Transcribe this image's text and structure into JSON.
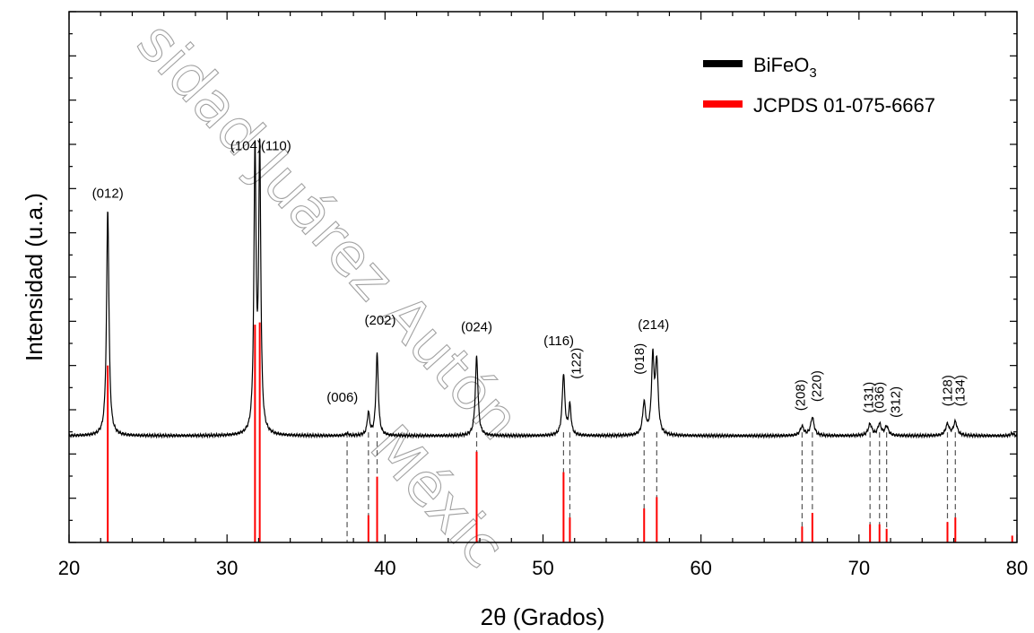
{
  "chart_data": {
    "type": "line",
    "xlabel_prefix": "2",
    "xlabel_symbol": "θ",
    "xlabel_suffix": " (Grados)",
    "ylabel": "Intensidad (u.a.)",
    "xlim": [
      20,
      80
    ],
    "xticks": [
      "20",
      "30",
      "40",
      "50",
      "60",
      "70",
      "80"
    ],
    "legend": {
      "position": "top-right",
      "entries": [
        {
          "label_main": "BiFeO",
          "label_sub": "3",
          "color": "#000000"
        },
        {
          "label_main": "JCPDS 01-075-6667",
          "label_sub": "",
          "color": "#ff0000"
        }
      ]
    },
    "series": [
      {
        "name": "BiFeO3",
        "color": "#000000",
        "baseline": 0.47,
        "peaks": [
          {
            "x": 22.45,
            "h": 1.0,
            "w": 0.09
          },
          {
            "x": 31.77,
            "h": 1.24,
            "w": 0.08
          },
          {
            "x": 32.07,
            "h": 1.24,
            "w": 0.08
          },
          {
            "x": 37.6,
            "h": 0.01,
            "w": 0.1
          },
          {
            "x": 38.95,
            "h": 0.1,
            "w": 0.09
          },
          {
            "x": 39.5,
            "h": 0.36,
            "w": 0.09
          },
          {
            "x": 45.8,
            "h": 0.35,
            "w": 0.1
          },
          {
            "x": 51.3,
            "h": 0.27,
            "w": 0.1
          },
          {
            "x": 51.7,
            "h": 0.13,
            "w": 0.09
          },
          {
            "x": 56.4,
            "h": 0.14,
            "w": 0.11
          },
          {
            "x": 56.95,
            "h": 0.33,
            "w": 0.1
          },
          {
            "x": 57.2,
            "h": 0.31,
            "w": 0.1
          },
          {
            "x": 66.4,
            "h": 0.04,
            "w": 0.14
          },
          {
            "x": 67.05,
            "h": 0.08,
            "w": 0.13
          },
          {
            "x": 70.7,
            "h": 0.05,
            "w": 0.14
          },
          {
            "x": 71.3,
            "h": 0.05,
            "w": 0.13
          },
          {
            "x": 71.75,
            "h": 0.04,
            "w": 0.13
          },
          {
            "x": 75.6,
            "h": 0.05,
            "w": 0.14
          },
          {
            "x": 76.1,
            "h": 0.06,
            "w": 0.14
          },
          {
            "x": 79.7,
            "h": 0.01,
            "w": 0.12
          }
        ]
      },
      {
        "name": "JCPDS 01-075-6667",
        "color": "#ff0000",
        "sticks": [
          {
            "x": 22.45,
            "h": 0.78
          },
          {
            "x": 31.77,
            "h": 0.96
          },
          {
            "x": 32.07,
            "h": 0.97
          },
          {
            "x": 38.95,
            "h": 0.12
          },
          {
            "x": 39.5,
            "h": 0.29
          },
          {
            "x": 45.8,
            "h": 0.4
          },
          {
            "x": 51.3,
            "h": 0.31
          },
          {
            "x": 51.7,
            "h": 0.11
          },
          {
            "x": 56.4,
            "h": 0.15
          },
          {
            "x": 57.2,
            "h": 0.2
          },
          {
            "x": 66.4,
            "h": 0.07
          },
          {
            "x": 67.05,
            "h": 0.13
          },
          {
            "x": 70.7,
            "h": 0.08
          },
          {
            "x": 71.3,
            "h": 0.08
          },
          {
            "x": 71.75,
            "h": 0.06
          },
          {
            "x": 75.6,
            "h": 0.09
          },
          {
            "x": 76.1,
            "h": 0.11
          },
          {
            "x": 79.7,
            "h": 0.03
          }
        ]
      }
    ],
    "reference_lines": [
      22.45,
      31.77,
      32.07,
      37.6,
      38.95,
      39.5,
      45.8,
      51.3,
      51.7,
      56.4,
      57.2,
      66.4,
      67.05,
      70.7,
      71.3,
      71.75,
      75.6,
      76.1
    ],
    "annotations": [
      {
        "text": "(012)",
        "x": 22.45,
        "y": 1.52,
        "rotate": false
      },
      {
        "text": "(104)",
        "x": 31.2,
        "y": 1.73,
        "rotate": false
      },
      {
        "text": "(110)",
        "x": 33.1,
        "y": 1.73,
        "rotate": false
      },
      {
        "text": "(006)",
        "x": 37.3,
        "y": 0.62,
        "rotate": false
      },
      {
        "text": "(202)",
        "x": 39.7,
        "y": 0.96,
        "rotate": false
      },
      {
        "text": "(024)",
        "x": 45.8,
        "y": 0.93,
        "rotate": false
      },
      {
        "text": "(116)",
        "x": 51.0,
        "y": 0.87,
        "rotate": false
      },
      {
        "text": "(122)",
        "x": 52.1,
        "y": 0.72,
        "rotate": true
      },
      {
        "text": "(018)",
        "x": 56.1,
        "y": 0.74,
        "rotate": true
      },
      {
        "text": "(214)",
        "x": 57.0,
        "y": 0.94,
        "rotate": false
      },
      {
        "text": "(208)",
        "x": 66.3,
        "y": 0.58,
        "rotate": true
      },
      {
        "text": "(220)",
        "x": 67.3,
        "y": 0.62,
        "rotate": true
      },
      {
        "text": "(131)",
        "x": 70.6,
        "y": 0.57,
        "rotate": true
      },
      {
        "text": "(036)",
        "x": 71.3,
        "y": 0.57,
        "rotate": true
      },
      {
        "text": "(312)",
        "x": 72.3,
        "y": 0.55,
        "rotate": true
      },
      {
        "text": "(128)",
        "x": 75.6,
        "y": 0.6,
        "rotate": true
      },
      {
        "text": "(134)",
        "x": 76.4,
        "y": 0.6,
        "rotate": true
      }
    ]
  },
  "watermark": {
    "line1": "sidad Juárez Autón",
    "line2": "Méxic"
  }
}
